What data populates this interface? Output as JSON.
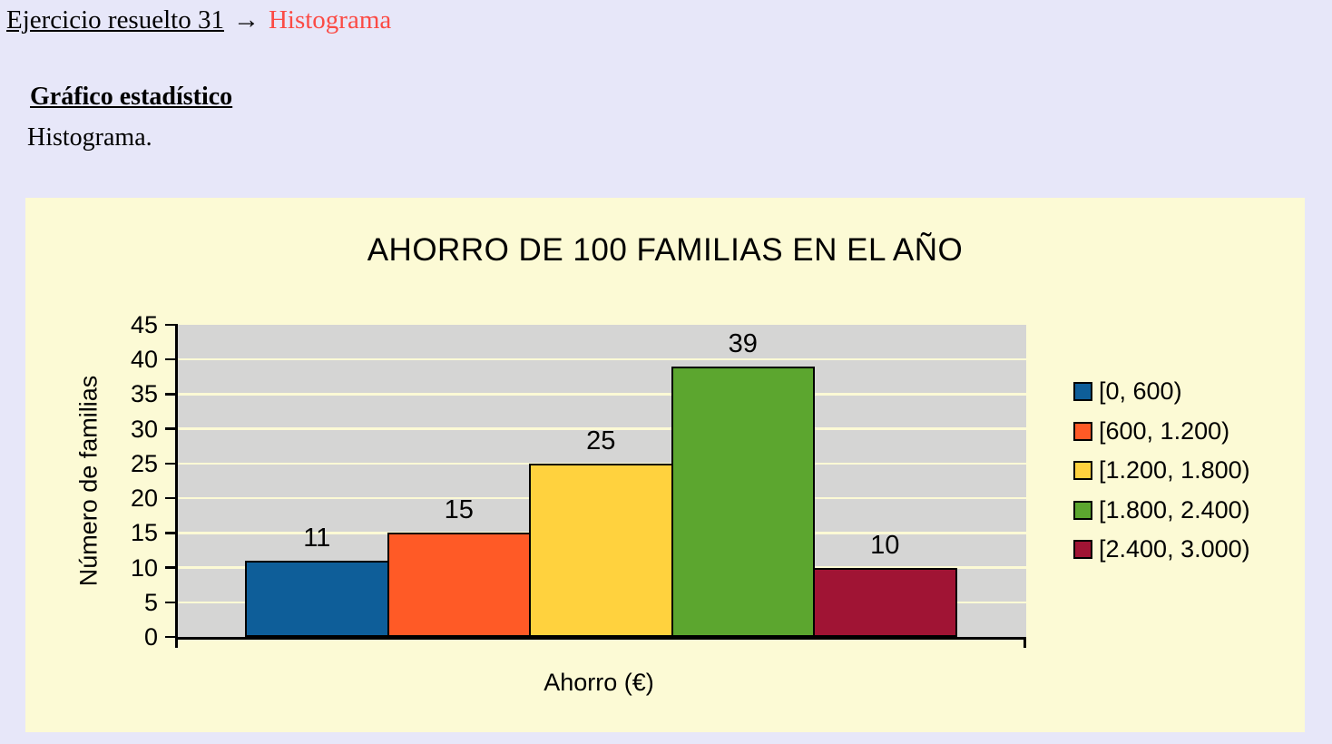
{
  "header": {
    "exercise": "Ejercicio resuelto 31",
    "arrow": "→",
    "topic": "Histograma"
  },
  "section": {
    "heading": "Gráfico estadístico",
    "body": "Histograma."
  },
  "colors": {
    "page_bg": "#E7E7F9",
    "panel_bg": "#FCFAD5",
    "plot_bg": "#D5D5D4",
    "grid_line": "#FCFAD5",
    "axis": "#000000",
    "topic_red": "#FB4B45"
  },
  "chart_data": {
    "type": "bar",
    "subtype": "histogram",
    "title": "AHORRO DE 100 FAMILIAS EN EL AÑO",
    "xlabel": "Ahorro (€)",
    "ylabel": "Número de familias",
    "categories": [
      "[0, 600)",
      "[600, 1.200)",
      "[1.200, 1.800)",
      "[1.800, 2.400)",
      "[2.400, 3.000)"
    ],
    "values": [
      11,
      15,
      25,
      39,
      10
    ],
    "bar_colors": [
      "#0E5E99",
      "#FF5A26",
      "#FFD23E",
      "#5CA62F",
      "#A01434"
    ],
    "ylim": [
      0,
      45
    ],
    "ytick_step": 5,
    "yticks": [
      0,
      5,
      10,
      15,
      20,
      25,
      30,
      35,
      40,
      45
    ],
    "grid": true,
    "value_labels": true,
    "legend_position": "right",
    "legend": [
      "[0, 600)",
      "[600, 1.200)",
      "[1.200, 1.800)",
      "[1.800, 2.400)",
      "[2.400, 3.000)"
    ]
  }
}
